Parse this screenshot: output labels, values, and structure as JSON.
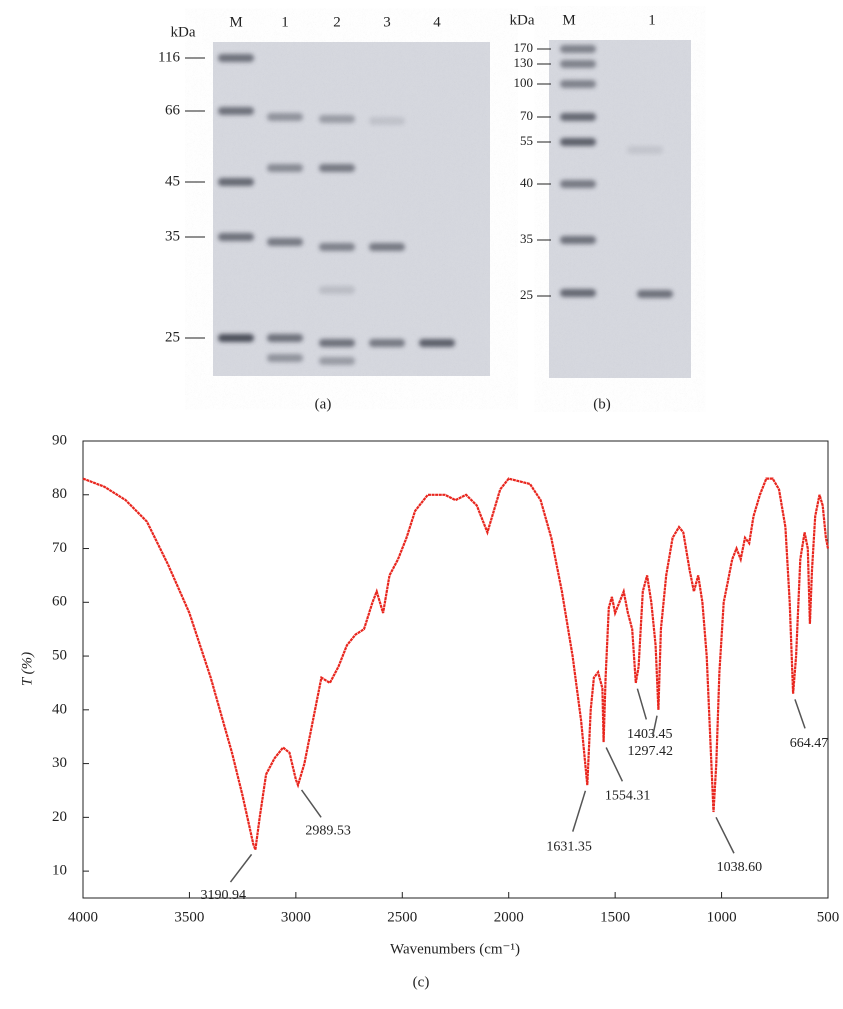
{
  "gels": [
    {
      "unit": "kDa",
      "lanes": [
        "M",
        "1",
        "2",
        "3",
        "4"
      ],
      "markers": [
        116,
        66,
        45,
        35,
        25
      ],
      "caption": "(a)"
    },
    {
      "unit": "kDa",
      "lanes": [
        "M",
        "1"
      ],
      "markers": [
        170,
        130,
        100,
        70,
        55,
        40,
        35,
        25
      ],
      "caption": "(b)"
    }
  ],
  "chart_data": {
    "type": "line",
    "caption": "(c)",
    "xlabel": "Wavenumbers (cm⁻¹)",
    "ylabel": "T (%)",
    "color": "#e8261e",
    "xlim": [
      4000,
      500
    ],
    "ylim": [
      5,
      90
    ],
    "xticks": [
      4000,
      3500,
      3000,
      2500,
      2000,
      1500,
      1000,
      500
    ],
    "yticks": [
      10,
      20,
      30,
      40,
      50,
      60,
      70,
      80,
      90
    ],
    "x": [
      4000,
      3900,
      3800,
      3700,
      3600,
      3500,
      3400,
      3300,
      3250,
      3200,
      3190,
      3170,
      3140,
      3100,
      3060,
      3030,
      3000,
      2990,
      2960,
      2920,
      2880,
      2840,
      2800,
      2760,
      2720,
      2680,
      2640,
      2620,
      2590,
      2560,
      2520,
      2480,
      2440,
      2380,
      2300,
      2250,
      2200,
      2150,
      2100,
      2070,
      2040,
      2000,
      1950,
      1900,
      1850,
      1800,
      1750,
      1700,
      1660,
      1631,
      1615,
      1600,
      1580,
      1560,
      1554,
      1545,
      1530,
      1515,
      1500,
      1480,
      1460,
      1440,
      1420,
      1403,
      1390,
      1370,
      1350,
      1330,
      1310,
      1297,
      1285,
      1260,
      1230,
      1200,
      1180,
      1150,
      1130,
      1110,
      1090,
      1070,
      1050,
      1038,
      1025,
      1010,
      990,
      970,
      950,
      930,
      910,
      890,
      870,
      850,
      820,
      790,
      760,
      730,
      700,
      680,
      664,
      650,
      630,
      610,
      595,
      585,
      575,
      560,
      540,
      525,
      510,
      500
    ],
    "values": [
      83,
      81.5,
      79,
      75,
      67,
      58,
      46,
      32,
      24,
      15,
      14,
      20,
      28,
      31,
      33,
      32,
      27,
      26,
      30,
      38,
      46,
      45,
      48,
      52,
      54,
      55,
      60,
      62,
      58,
      65,
      68,
      72,
      77,
      80,
      80,
      79,
      80,
      78,
      73,
      77,
      81,
      83,
      82.5,
      82,
      79,
      72,
      62,
      50,
      38,
      26,
      40,
      46,
      47,
      44,
      34,
      46,
      59,
      61,
      58,
      60,
      62,
      58,
      55,
      45,
      48,
      62,
      65,
      60,
      52,
      40,
      55,
      65,
      72,
      74,
      73,
      66,
      62,
      65,
      60,
      50,
      32,
      21,
      30,
      47,
      60,
      64,
      68,
      70,
      68,
      72,
      71,
      76,
      80,
      83,
      83,
      81,
      74,
      60,
      43,
      50,
      68,
      73,
      70,
      56,
      66,
      76,
      80,
      78,
      72,
      70
    ],
    "annotations": [
      {
        "label": "3190.94",
        "x": 3190.94,
        "y": 14
      },
      {
        "label": "2989.53",
        "x": 2989.53,
        "y": 26
      },
      {
        "label": "1631.35",
        "x": 1631.35,
        "y": 26
      },
      {
        "label": "1554.31",
        "x": 1554.31,
        "y": 34
      },
      {
        "label": "1403.45",
        "x": 1403.45,
        "y": 45
      },
      {
        "label": "1297.42",
        "x": 1297.42,
        "y": 40
      },
      {
        "label": "1038.60",
        "x": 1038.6,
        "y": 21
      },
      {
        "label": "664.47",
        "x": 664.47,
        "y": 43
      }
    ]
  }
}
